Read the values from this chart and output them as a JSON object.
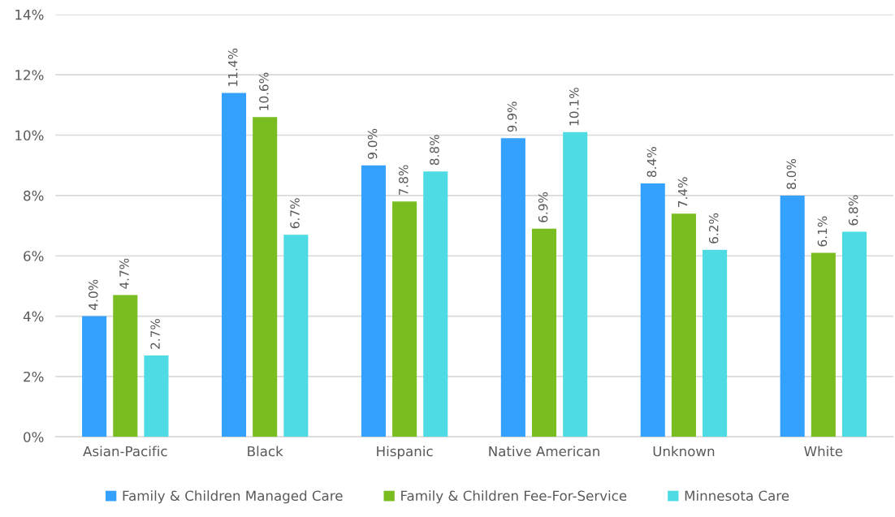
{
  "chart_data": {
    "type": "bar",
    "categories": [
      "Asian-Pacific",
      "Black",
      "Hispanic",
      "Native American",
      "Unknown",
      "White"
    ],
    "series": [
      {
        "name": "Family & Children Managed Care",
        "color": "#33a1fd",
        "values": [
          4.0,
          11.4,
          9.0,
          9.9,
          8.4,
          8.0
        ],
        "value_labels": [
          "4.0%",
          "11.4%",
          "9.0%",
          "9.9%",
          "8.4%",
          "8.0%"
        ]
      },
      {
        "name": "Family & Children Fee-For-Service",
        "color": "#7abd21",
        "values": [
          4.7,
          10.6,
          7.8,
          6.9,
          7.4,
          6.1
        ],
        "value_labels": [
          "4.7%",
          "10.6%",
          "7.8%",
          "6.9%",
          "7.4%",
          "6.1%"
        ]
      },
      {
        "name": "Minnesota Care",
        "color": "#4fdbe3",
        "values": [
          2.7,
          6.7,
          8.8,
          10.1,
          6.2,
          6.8
        ],
        "value_labels": [
          "2.7%",
          "6.7%",
          "8.8%",
          "10.1%",
          "6.2%",
          "6.8%"
        ]
      }
    ],
    "ylim": [
      0,
      14
    ],
    "yticks": [
      {
        "value": 0,
        "label": "0%"
      },
      {
        "value": 2,
        "label": "2%"
      },
      {
        "value": 4,
        "label": "4%"
      },
      {
        "value": 6,
        "label": "6%"
      },
      {
        "value": 8,
        "label": "8%"
      },
      {
        "value": 10,
        "label": "10%"
      },
      {
        "value": 12,
        "label": "12%"
      },
      {
        "value": 14,
        "label": "14%"
      }
    ],
    "grid": "y",
    "legend": "bottom"
  }
}
